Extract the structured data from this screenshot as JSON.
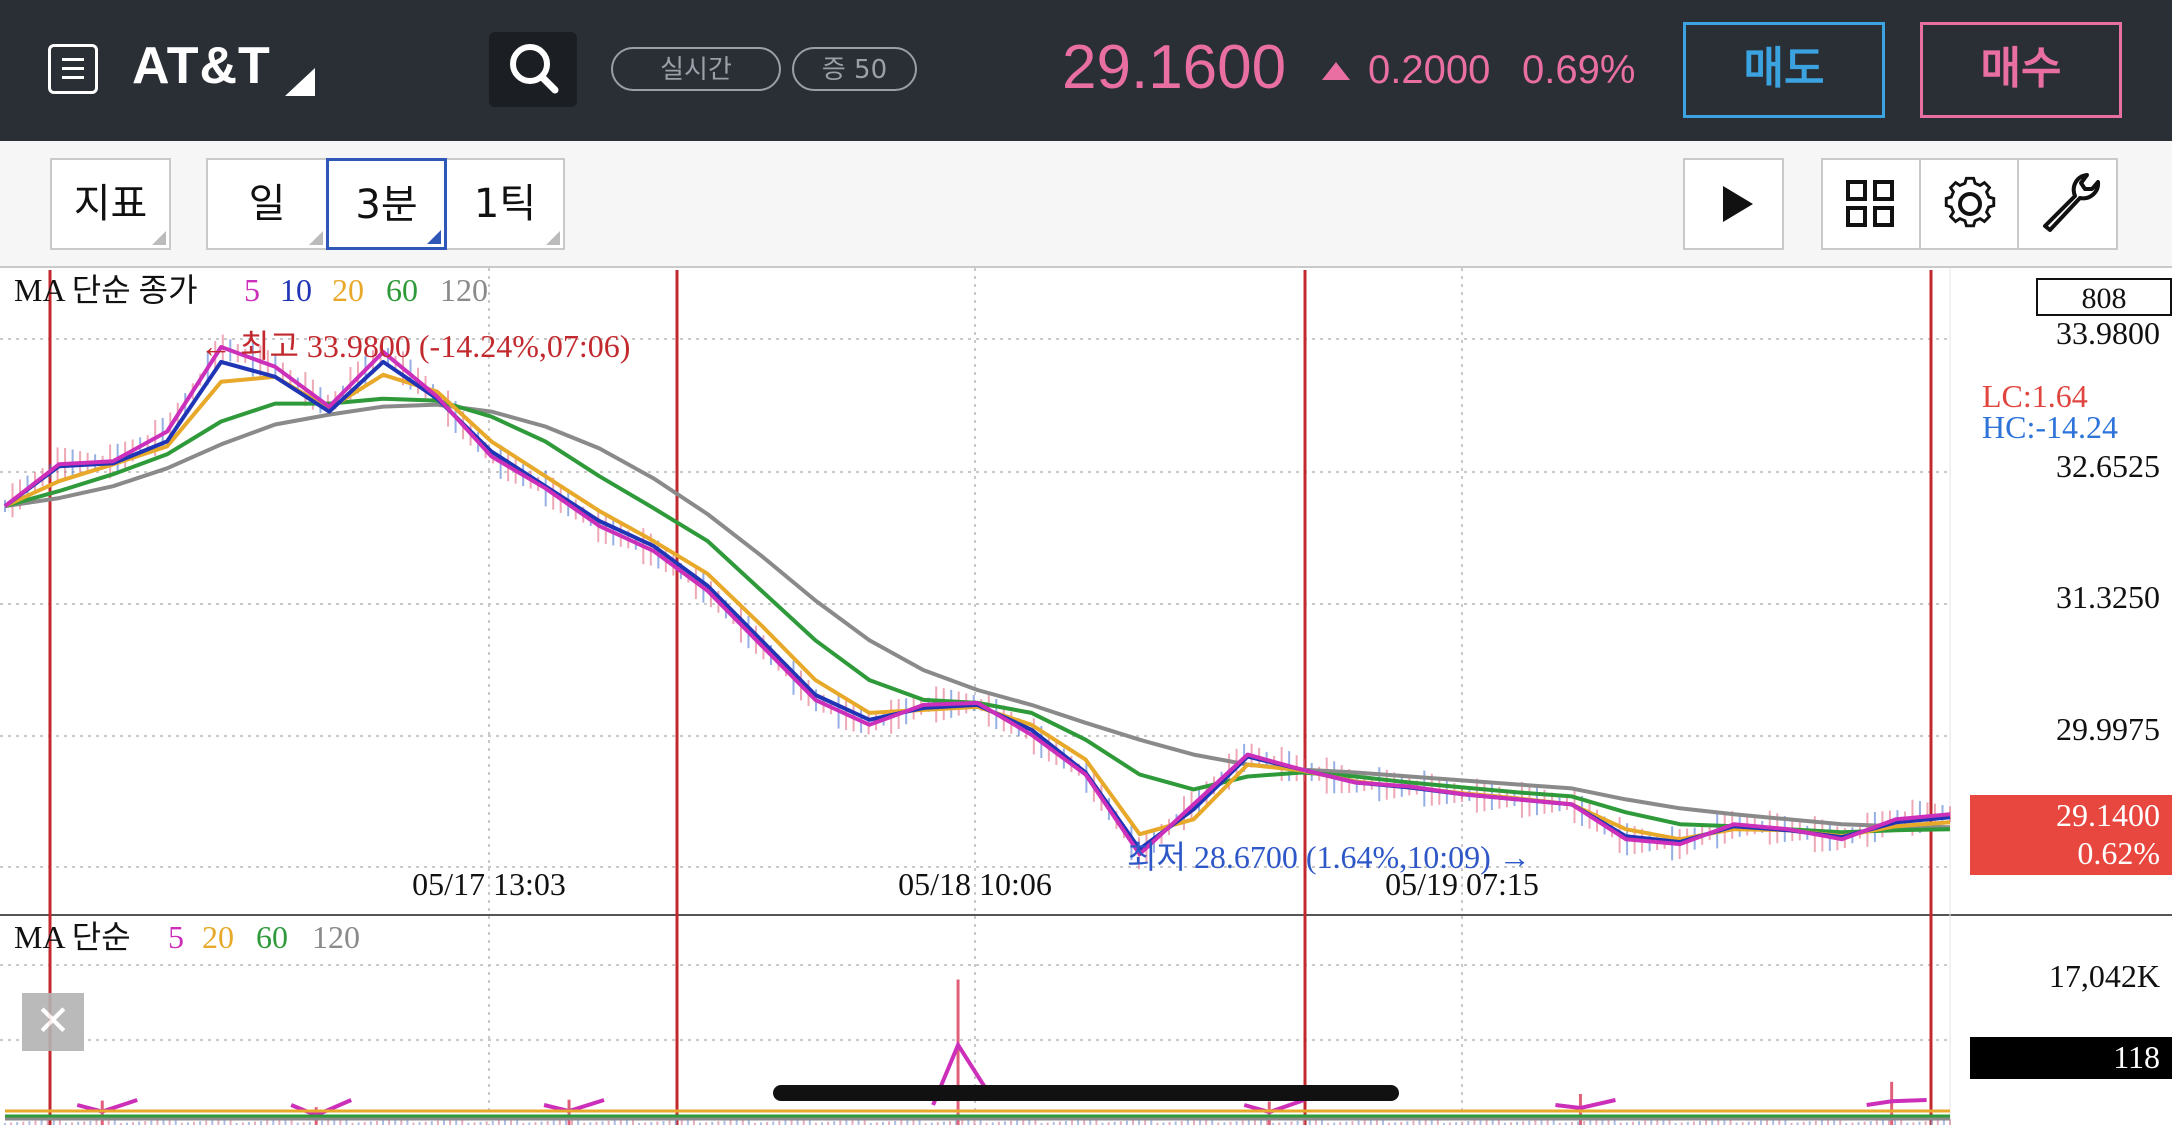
{
  "header": {
    "symbol": "AT&T",
    "mode_realtime": "실시간",
    "mode_count": "증 50",
    "price": "29.1600",
    "change_amount": "0.2000",
    "change_percent": "0.69%",
    "sell_label": "매도",
    "buy_label": "매수"
  },
  "toolbar": {
    "indicator_label": "지표",
    "periods": [
      "일",
      "3분",
      "1틱"
    ],
    "active_period": "3분",
    "icons": [
      "play-icon",
      "layout-grid-icon",
      "gear-icon",
      "wrench-icon"
    ]
  },
  "colors": {
    "up": "#e96fa3",
    "sell": "#3aa3e0",
    "buy": "#e96fa3",
    "ma5": "#cc2fb9",
    "ma10": "#1f35b5",
    "ma20": "#e8a92a",
    "ma60": "#2f9a3a",
    "ma120": "#8a8a8a"
  },
  "price_panel": {
    "legend_title": "MA 단순 종가",
    "legend_values": [
      "5",
      "10",
      "20",
      "60",
      "120"
    ],
    "high_annotation": "← 최고 33.9800 (-14.24%,07:06)",
    "low_annotation": "최저 28.6700 (1.64%,10:09) →",
    "axis_box_value": "808",
    "y_ticks": [
      "33.9800",
      "32.6525",
      "31.3250",
      "29.9975"
    ],
    "lc_label": "LC:1.64",
    "hc_label": "HC:-14.24",
    "current_price_tag": "29.1400",
    "current_change_tag": "0.62%",
    "x_ticks": [
      "05/17 13:03",
      "05/18 10:06",
      "05/19 07:15"
    ]
  },
  "volume_panel": {
    "legend_title": "MA 단순",
    "legend_values": [
      "5",
      "20",
      "60",
      "120"
    ],
    "max_label": "17,042K",
    "current_volume": "118"
  },
  "chart_data": {
    "type": "line",
    "ylim": [
      28.67,
      33.98
    ],
    "series": [
      {
        "name": "5",
        "color": "#cc2fb9",
        "values": [
          32.3,
          32.72,
          32.75,
          33.05,
          33.9,
          33.7,
          33.3,
          33.85,
          33.4,
          32.8,
          32.48,
          32.1,
          31.85,
          31.45,
          30.9,
          30.35,
          30.1,
          30.3,
          30.32,
          30.0,
          29.6,
          28.8,
          29.3,
          29.8,
          29.65,
          29.52,
          29.48,
          29.4,
          29.35,
          29.3,
          28.95,
          28.9,
          29.1,
          29.05,
          28.95,
          29.15,
          29.2
        ]
      },
      {
        "name": "10",
        "color": "#1f35b5",
        "values": [
          32.3,
          32.7,
          32.73,
          32.95,
          33.75,
          33.6,
          33.25,
          33.75,
          33.38,
          32.85,
          32.5,
          32.15,
          31.9,
          31.5,
          30.95,
          30.4,
          30.15,
          30.27,
          30.3,
          30.05,
          29.62,
          28.85,
          29.25,
          29.78,
          29.65,
          29.52,
          29.47,
          29.4,
          29.35,
          29.3,
          28.98,
          28.92,
          29.08,
          29.04,
          28.97,
          29.12,
          29.17
        ]
      },
      {
        "name": "20",
        "color": "#e8a92a",
        "values": [
          32.3,
          32.55,
          32.72,
          32.9,
          33.55,
          33.6,
          33.28,
          33.62,
          33.45,
          32.95,
          32.6,
          32.25,
          31.95,
          31.62,
          31.1,
          30.55,
          30.22,
          30.25,
          30.28,
          30.1,
          29.75,
          29.0,
          29.15,
          29.7,
          29.64,
          29.53,
          29.47,
          29.41,
          29.36,
          29.3,
          29.05,
          28.95,
          29.05,
          29.04,
          28.98,
          29.08,
          29.12
        ]
      },
      {
        "name": "60",
        "color": "#2f9a3a",
        "values": [
          32.3,
          32.45,
          32.62,
          32.82,
          33.15,
          33.33,
          33.33,
          33.38,
          33.36,
          33.2,
          32.95,
          32.6,
          32.28,
          31.95,
          31.45,
          30.95,
          30.55,
          30.35,
          30.32,
          30.22,
          29.95,
          29.6,
          29.45,
          29.58,
          29.62,
          29.58,
          29.52,
          29.47,
          29.42,
          29.38,
          29.22,
          29.1,
          29.08,
          29.05,
          29.02,
          29.04,
          29.05
        ]
      },
      {
        "name": "120",
        "color": "#8a8a8a",
        "values": [
          32.3,
          32.38,
          32.5,
          32.68,
          32.92,
          33.12,
          33.22,
          33.3,
          33.32,
          33.25,
          33.1,
          32.88,
          32.58,
          32.22,
          31.8,
          31.35,
          30.95,
          30.65,
          30.45,
          30.3,
          30.12,
          29.95,
          29.8,
          29.7,
          29.65,
          29.62,
          29.58,
          29.54,
          29.5,
          29.46,
          29.35,
          29.26,
          29.2,
          29.15,
          29.1,
          29.08,
          29.07
        ]
      }
    ],
    "volume_ylim": [
      0,
      17042
    ],
    "volume_spike_positions": [
      0.05,
      0.16,
      0.29,
      0.49,
      0.65,
      0.81,
      0.97
    ],
    "volume_spike_values": [
      2600,
      1900,
      2700,
      15500,
      2500,
      3300,
      4600
    ],
    "x_tick_labels": [
      "05/17 13:03",
      "05/18 10:06",
      "05/19 07:15"
    ]
  }
}
